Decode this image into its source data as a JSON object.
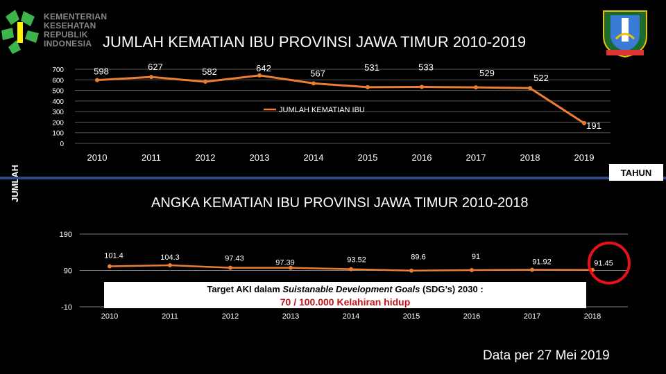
{
  "header": {
    "logo_lines": [
      "KEMENTERIAN",
      "KESEHATAN",
      "REPUBLIK",
      "INDONESIA"
    ],
    "icon": "kemenkes-logo-icon"
  },
  "emblem_icon": "jawa-timur-emblem-icon",
  "ylabel": "JUMLAH",
  "xlabel": "TAHUN",
  "target": {
    "line1_prefix": "Target AKI dalam ",
    "line1_em": "Suistanable Development Goals",
    "line1_suffix": " (SDG’s) 2030 :",
    "line2": "70 / 100.000 Kelahiran hidup"
  },
  "footnote": "Data per 27 Mei 2019",
  "colors": {
    "line": "#ed7d31",
    "highlight_circle": "#e8101a",
    "divider": "#2e4a88"
  },
  "chart_data": [
    {
      "type": "line",
      "title": "JUMLAH KEMATIAN IBU PROVINSI JAWA TIMUR 2010-2019",
      "xlabel": "TAHUN",
      "ylabel": "JUMLAH",
      "categories": [
        "2010",
        "2011",
        "2012",
        "2013",
        "2014",
        "2015",
        "2016",
        "2017",
        "2018",
        "2019"
      ],
      "series": [
        {
          "name": "JUMLAH KEMATIAN IBU",
          "values": [
            598,
            627,
            582,
            642,
            567,
            531,
            533,
            529,
            522,
            191
          ]
        }
      ],
      "ylim": [
        0,
        700
      ],
      "yticks": [
        "0",
        "100",
        "200",
        "300",
        "400",
        "500",
        "600",
        "700"
      ],
      "grid": true,
      "legend": "center"
    },
    {
      "type": "line",
      "title": "ANGKA KEMATIAN IBU PROVINSI JAWA TIMUR 2010-2018",
      "categories": [
        "2010",
        "2011",
        "2012",
        "2013",
        "2014",
        "2015",
        "2016",
        "2017",
        "2018"
      ],
      "series": [
        {
          "values": [
            101.4,
            104.3,
            97.43,
            97.39,
            93.52,
            89.6,
            91,
            91.92,
            91.45
          ]
        }
      ],
      "labels": [
        "101.4",
        "104.3",
        "97.43",
        "97.39",
        "93.52",
        "89.6",
        "91",
        "91.92",
        "91.45"
      ],
      "ylim": [
        -10,
        190
      ],
      "yticks": [
        "-10",
        "90",
        "190"
      ],
      "highlight": "2018"
    }
  ]
}
